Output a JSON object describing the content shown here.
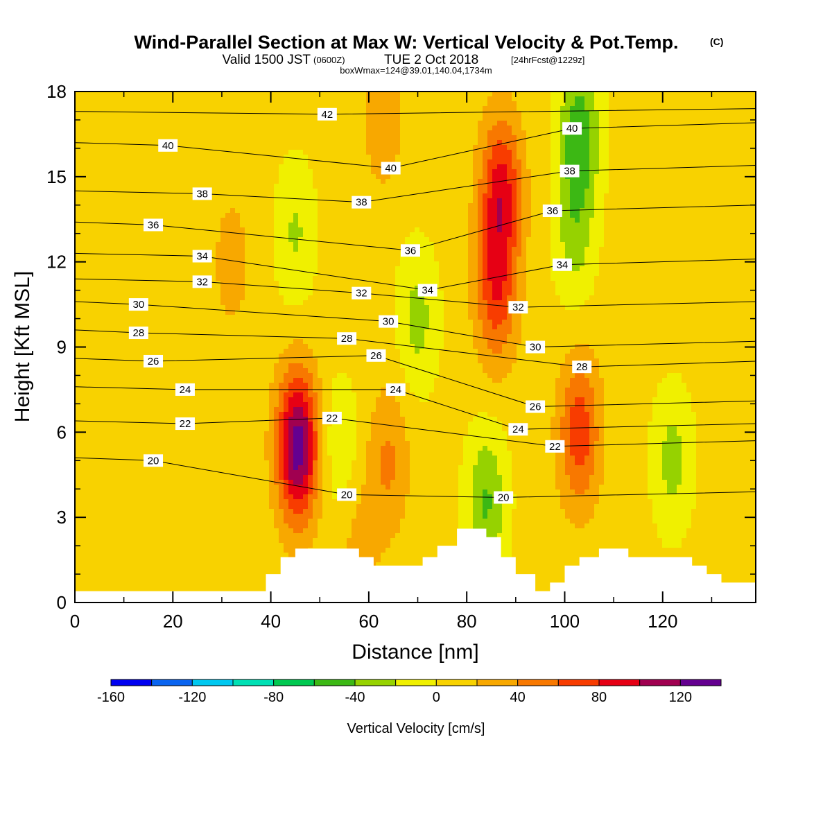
{
  "title": {
    "main": "Wind-Parallel Section at Max W: Vertical Velocity & Pot.Temp.",
    "main_suffix": "(C)",
    "valid_prefix": "Valid 1500 JST",
    "valid_utc": "(0600Z)",
    "valid_suffix": "TUE 2 Oct 2018",
    "forecast": "[24hrFcst@1229z]",
    "box_info": "boxWmax=124@39.01,140.04,1734m"
  },
  "chart_data": {
    "type": "contour",
    "title": "Wind-Parallel Section at Max W: Vertical Velocity & Pot.Temp.",
    "xlabel": "Distance [nm]",
    "ylabel": "Height [Kft MSL]",
    "xlim": [
      0,
      139
    ],
    "ylim": [
      0,
      18
    ],
    "x_ticks": [
      0,
      20,
      40,
      60,
      80,
      100,
      120
    ],
    "y_ticks": [
      0,
      3,
      6,
      9,
      12,
      15,
      18
    ],
    "fill_field": "Vertical Velocity [cm/s]",
    "fill_levels": [
      -160,
      -140,
      -120,
      -100,
      -80,
      -60,
      -40,
      -20,
      0,
      20,
      40,
      60,
      80,
      100,
      120,
      140
    ],
    "fill_colors": [
      "#0000f0",
      "#0a64f0",
      "#00c8f0",
      "#00e0b4",
      "#00c850",
      "#3cb814",
      "#96d200",
      "#f0f000",
      "#f8d200",
      "#f8a800",
      "#f87800",
      "#f83c00",
      "#e60014",
      "#a00050",
      "#640090"
    ],
    "colorbar": {
      "tick_values": [
        -160,
        -120,
        -80,
        -40,
        0,
        40,
        80,
        120
      ],
      "tick_labels": [
        "-160",
        "-120",
        "-80",
        "-40",
        "0",
        "40",
        "80",
        "120"
      ],
      "label": "Vertical Velocity [cm/s]"
    },
    "vertical_velocity_features": [
      {
        "x": 45.5,
        "y": 5.5,
        "value": 124
      },
      {
        "x": 87,
        "y": 14.5,
        "value": 80
      },
      {
        "x": 86,
        "y": 11,
        "value": 65
      },
      {
        "x": 103,
        "y": 16.5,
        "value": -60
      },
      {
        "x": 102,
        "y": 13,
        "value": -35
      },
      {
        "x": 45,
        "y": 13,
        "value": -30
      },
      {
        "x": 70,
        "y": 10,
        "value": -35
      },
      {
        "x": 84,
        "y": 3.5,
        "value": -50
      },
      {
        "x": 122,
        "y": 5,
        "value": -35
      },
      {
        "x": 54,
        "y": 5.5,
        "value": -25
      },
      {
        "x": 103,
        "y": 6,
        "value": 65
      },
      {
        "x": 64,
        "y": 5,
        "value": 35
      },
      {
        "x": 32,
        "y": 12,
        "value": 20
      },
      {
        "x": 63,
        "y": 17,
        "value": 25
      },
      {
        "x": 58,
        "y": 2,
        "value": 20
      }
    ],
    "line_field": "Potential Temperature [C]",
    "potential_temperature_contours": [
      {
        "value": 20,
        "labels": [
          {
            "x": 16,
            "y": 5.0
          },
          {
            "x": 55.5,
            "y": 3.8
          },
          {
            "x": 87.5,
            "y": 3.7
          }
        ]
      },
      {
        "x_note": "",
        "value": 22,
        "labels": [
          {
            "x": 22.5,
            "y": 6.3
          },
          {
            "x": 52.5,
            "y": 6.5
          },
          {
            "x": 98,
            "y": 5.5
          }
        ]
      },
      {
        "value": 24,
        "labels": [
          {
            "x": 22.5,
            "y": 7.5
          },
          {
            "x": 65.5,
            "y": 7.5
          },
          {
            "x": 90.5,
            "y": 6.1
          }
        ]
      },
      {
        "value": 26,
        "labels": [
          {
            "x": 16,
            "y": 8.5
          },
          {
            "x": 61.5,
            "y": 8.7
          },
          {
            "x": 94,
            "y": 6.9
          }
        ]
      },
      {
        "value": 28,
        "labels": [
          {
            "x": 13,
            "y": 9.5
          },
          {
            "x": 55.5,
            "y": 9.3
          },
          {
            "x": 103.5,
            "y": 8.3
          }
        ]
      },
      {
        "value": 30,
        "labels": [
          {
            "x": 13,
            "y": 10.5
          },
          {
            "x": 64,
            "y": 9.9
          },
          {
            "x": 94,
            "y": 9.0
          }
        ]
      },
      {
        "value": 32,
        "labels": [
          {
            "x": 26,
            "y": 11.3
          },
          {
            "x": 58.5,
            "y": 10.9
          },
          {
            "x": 90.5,
            "y": 10.4
          }
        ]
      },
      {
        "value": 34,
        "labels": [
          {
            "x": 26,
            "y": 12.2
          },
          {
            "x": 72,
            "y": 11.0
          },
          {
            "x": 99.5,
            "y": 11.9
          }
        ]
      },
      {
        "value": 36,
        "labels": [
          {
            "x": 16,
            "y": 13.3
          },
          {
            "x": 68.5,
            "y": 12.4
          },
          {
            "x": 97.5,
            "y": 13.8
          }
        ]
      },
      {
        "value": 38,
        "labels": [
          {
            "x": 26,
            "y": 14.4
          },
          {
            "x": 58.5,
            "y": 14.1
          },
          {
            "x": 101,
            "y": 15.2
          }
        ]
      },
      {
        "value": 40,
        "labels": [
          {
            "x": 19,
            "y": 16.1
          },
          {
            "x": 64.5,
            "y": 15.3
          },
          {
            "x": 101.5,
            "y": 16.7
          }
        ]
      },
      {
        "value": 42,
        "labels": [
          {
            "x": 51.5,
            "y": 17.2
          }
        ]
      }
    ],
    "terrain": [
      [
        0,
        0.4
      ],
      [
        39,
        0.4
      ],
      [
        39,
        1.0
      ],
      [
        42,
        1.0
      ],
      [
        42,
        1.6
      ],
      [
        45,
        1.6
      ],
      [
        45,
        1.9
      ],
      [
        58,
        1.9
      ],
      [
        58,
        1.6
      ],
      [
        61,
        1.6
      ],
      [
        61,
        1.3
      ],
      [
        71,
        1.3
      ],
      [
        71,
        1.6
      ],
      [
        74,
        1.6
      ],
      [
        74,
        2.0
      ],
      [
        78,
        2.0
      ],
      [
        78,
        2.6
      ],
      [
        84,
        2.6
      ],
      [
        84,
        2.3
      ],
      [
        87,
        2.3
      ],
      [
        87,
        1.6
      ],
      [
        90,
        1.6
      ],
      [
        90,
        1.0
      ],
      [
        94,
        1.0
      ],
      [
        94,
        0.4
      ],
      [
        97,
        0.4
      ],
      [
        97,
        0.7
      ],
      [
        100,
        0.7
      ],
      [
        100,
        1.3
      ],
      [
        103,
        1.3
      ],
      [
        103,
        1.6
      ],
      [
        107,
        1.6
      ],
      [
        107,
        1.9
      ],
      [
        113,
        1.9
      ],
      [
        113,
        1.6
      ],
      [
        126,
        1.6
      ],
      [
        126,
        1.3
      ],
      [
        129,
        1.3
      ],
      [
        129,
        1.0
      ],
      [
        132,
        1.0
      ],
      [
        132,
        0.7
      ],
      [
        139,
        0.7
      ]
    ]
  }
}
